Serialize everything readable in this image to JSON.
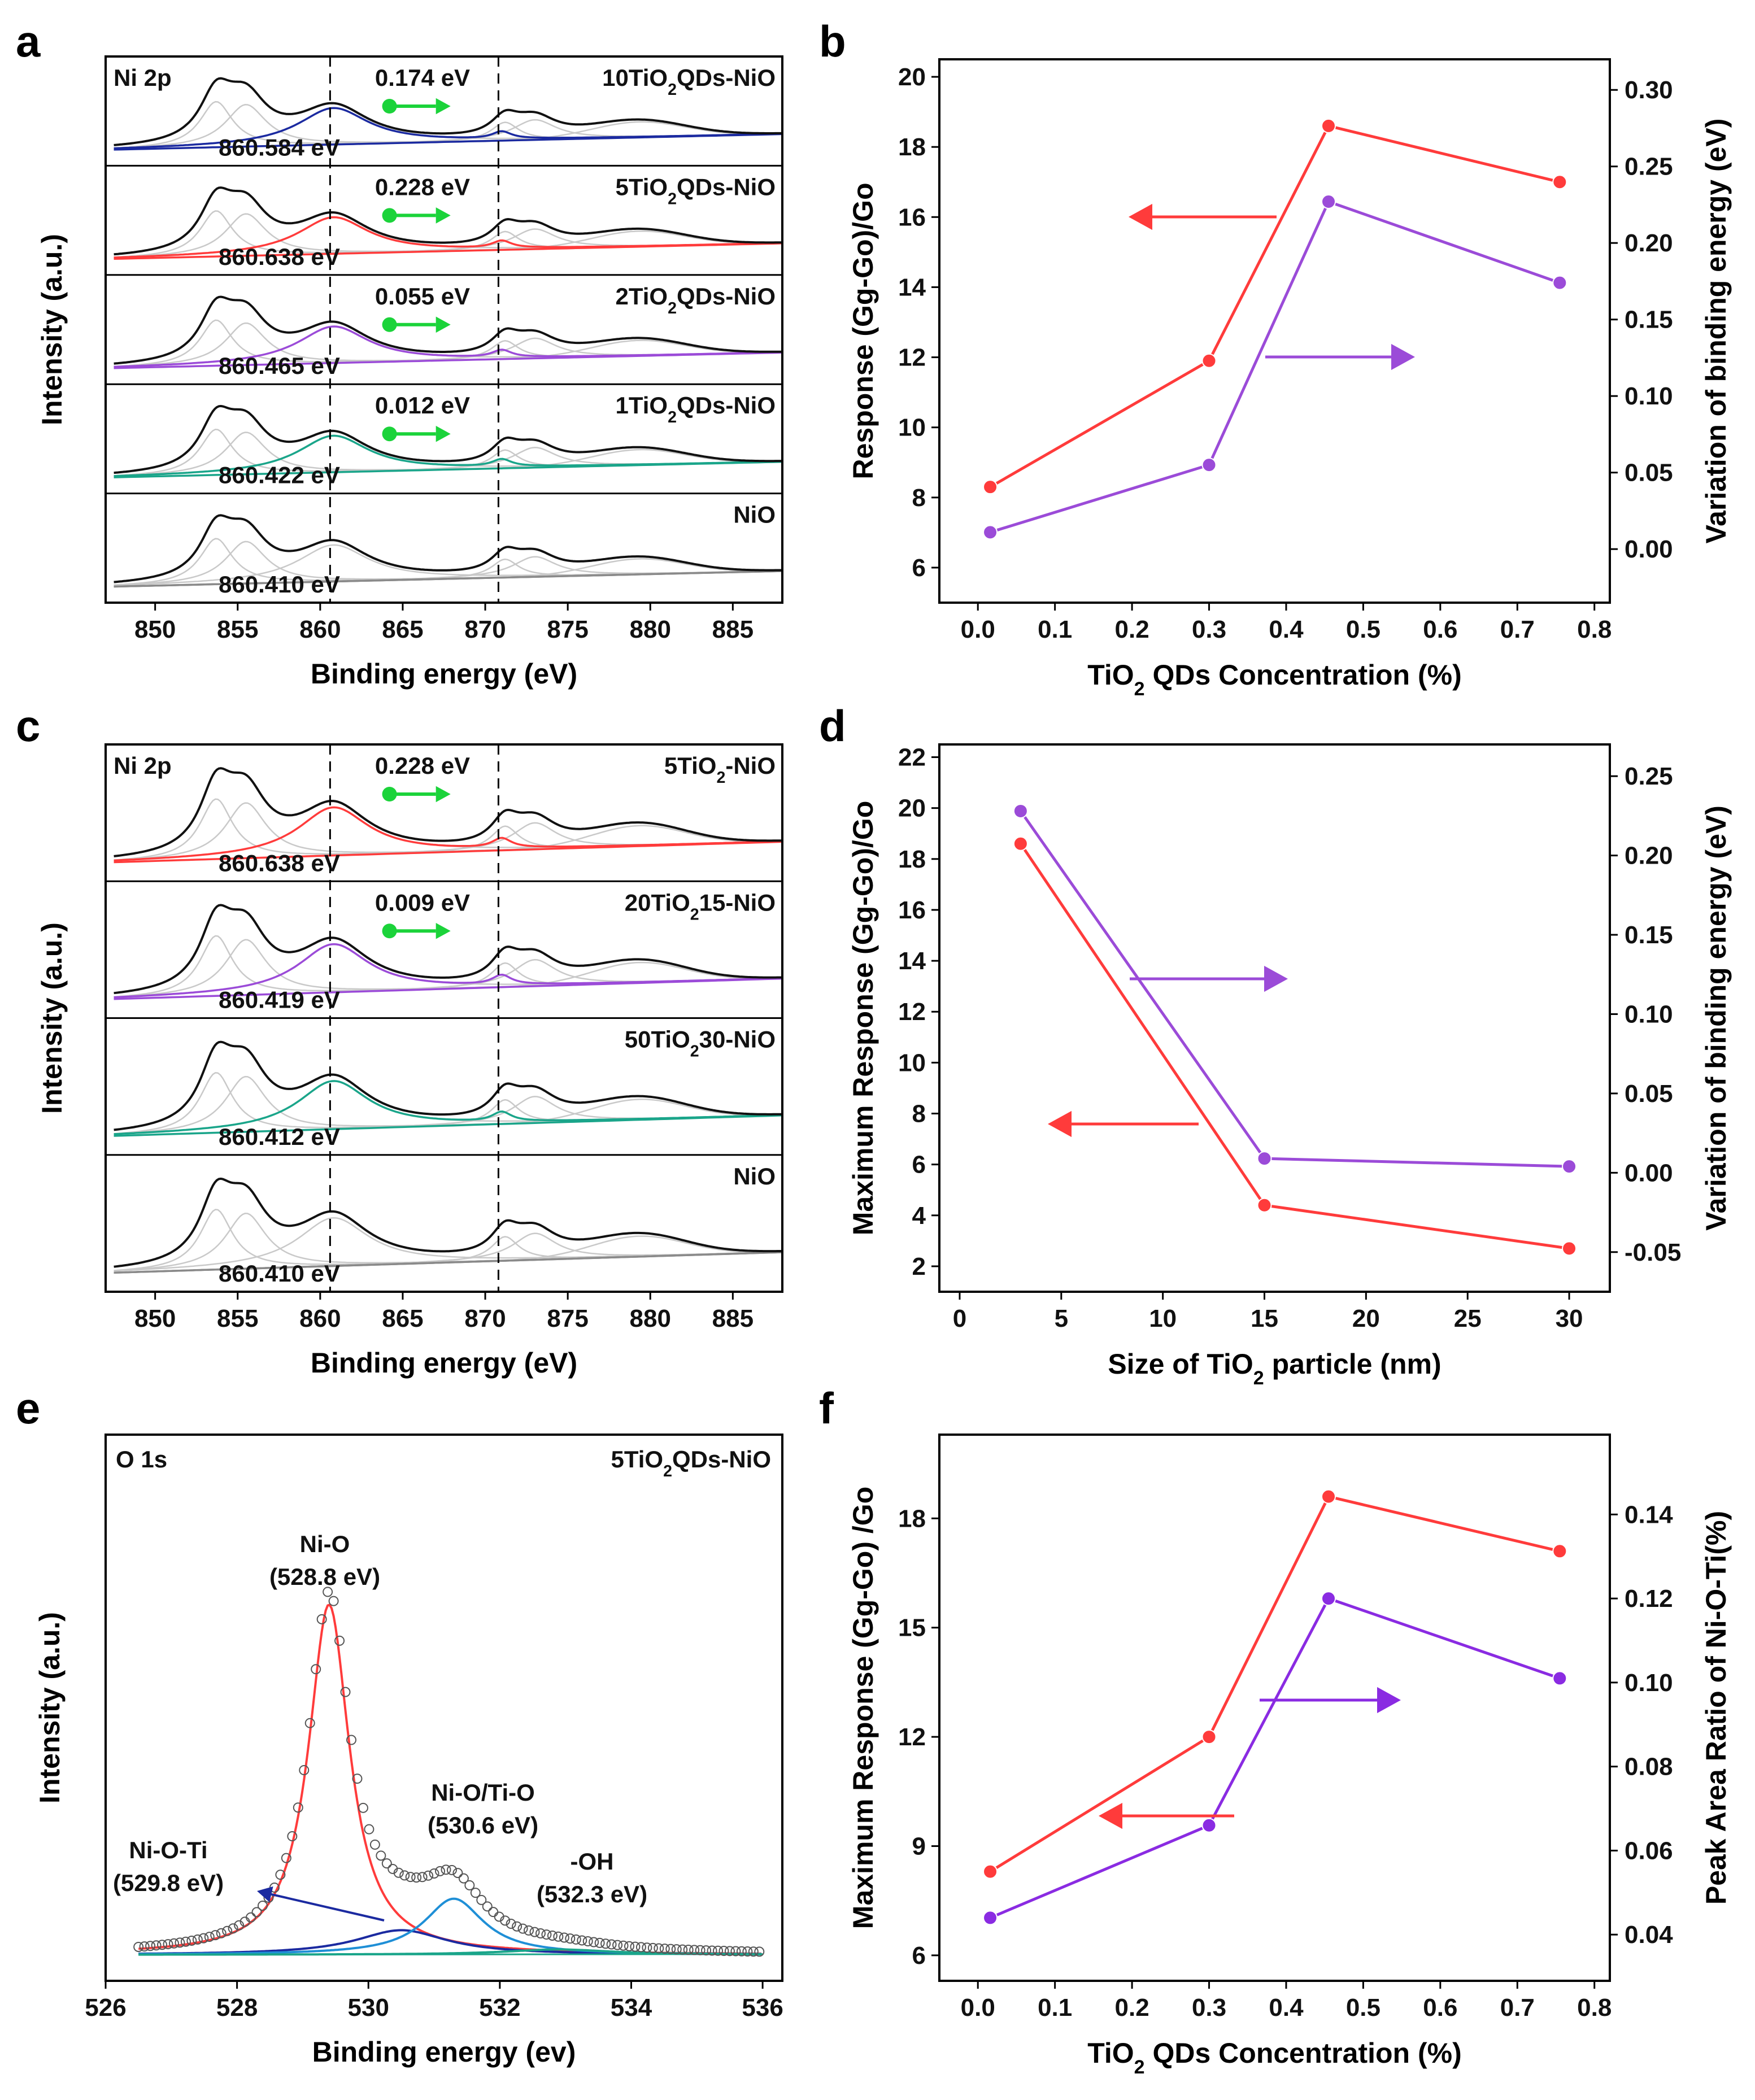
{
  "figure_labels": [
    "a",
    "b",
    "c",
    "d",
    "e",
    "f"
  ],
  "colors": {
    "red": "#ff3b3b",
    "purple": "#9b4bd8",
    "purple_f": "#8a2be2",
    "green": "#1bd33a",
    "navy": "#1b2aa0",
    "teal": "#1aa58a",
    "blue": "#1f8fd6"
  },
  "chart_data": [
    {
      "id": "a",
      "type": "line",
      "title": "",
      "xlabel": "Binding energy (eV)",
      "ylabel": "Intensity (a.u.)",
      "xlim": [
        847,
        888
      ],
      "xticks": [
        "850",
        "855",
        "860",
        "865",
        "870",
        "875",
        "880",
        "885"
      ],
      "element_label": "Ni 2p",
      "reference_lines": [
        860.6,
        870.8
      ],
      "panels": [
        {
          "sample": "10TiO₂QDs-NiO",
          "shift": "0.174 eV",
          "peak": "860.584 eV",
          "color": "#1b2aa0"
        },
        {
          "sample": "5TiO₂QDs-NiO",
          "shift": "0.228 eV",
          "peak": "860.638 eV",
          "color": "#ff3b3b"
        },
        {
          "sample": "2TiO₂QDs-NiO",
          "shift": "0.055 eV",
          "peak": "860.465 eV",
          "color": "#9b4bd8"
        },
        {
          "sample": "1TiO₂QDs-NiO",
          "shift": "0.012 eV",
          "peak": "860.422 eV",
          "color": "#1aa58a"
        },
        {
          "sample": "NiO",
          "shift": "",
          "peak": "860.410 eV",
          "color": "#8a8a8a"
        }
      ]
    },
    {
      "id": "b",
      "type": "line",
      "title": "",
      "xlabel": "TiO₂ QDs Concentration (%)",
      "ylabel": "Response (Gg-Go)/Go",
      "y2label": "Variation of binding energy (eV)",
      "xlim": [
        -0.05,
        0.82
      ],
      "ylim": [
        5,
        20.5
      ],
      "y2lim": [
        -0.035,
        0.32
      ],
      "xticks": [
        "0.0",
        "0.1",
        "0.2",
        "0.3",
        "0.4",
        "0.5",
        "0.6",
        "0.7",
        "0.8"
      ],
      "yticks": [
        "6",
        "8",
        "10",
        "12",
        "14",
        "16",
        "18",
        "20"
      ],
      "y2ticks": [
        "0.00",
        "0.05",
        "0.10",
        "0.15",
        "0.20",
        "0.25",
        "0.30"
      ],
      "series": [
        {
          "name": "Response",
          "axis": "left",
          "color": "#ff3b3b",
          "x": [
            0.016,
            0.3,
            0.455,
            0.755
          ],
          "values": [
            8.3,
            11.9,
            18.6,
            17.0
          ]
        },
        {
          "name": "Variation of binding energy",
          "axis": "right",
          "color": "#9b4bd8",
          "x": [
            0.016,
            0.3,
            0.455,
            0.755
          ],
          "values": [
            0.011,
            0.055,
            0.227,
            0.174
          ]
        }
      ]
    },
    {
      "id": "c",
      "type": "line",
      "title": "",
      "xlabel": "Binding energy (eV)",
      "ylabel": "Intensity (a.u.)",
      "xlim": [
        847,
        888
      ],
      "xticks": [
        "850",
        "855",
        "860",
        "865",
        "870",
        "875",
        "880",
        "885"
      ],
      "element_label": "Ni 2p",
      "reference_lines": [
        860.6,
        870.8
      ],
      "panels": [
        {
          "sample": "5TiO₂-NiO",
          "shift": "0.228 eV",
          "peak": "860.638 eV",
          "color": "#ff3b3b"
        },
        {
          "sample": "20TiO₂15-NiO",
          "shift": "0.009 eV",
          "peak": "860.419 eV",
          "color": "#9b4bd8"
        },
        {
          "sample": "50TiO₂30-NiO",
          "shift": "",
          "peak": "860.412 eV",
          "color": "#1aa58a"
        },
        {
          "sample": "NiO",
          "shift": "",
          "peak": "860.410 eV",
          "color": "#8a8a8a"
        }
      ]
    },
    {
      "id": "d",
      "type": "line",
      "title": "",
      "xlabel": "Size of TiO₂ particle (nm)",
      "ylabel": "Maximum Response (Gg-Go)/Go",
      "y2label": "Variation of binding energy (eV)",
      "xlim": [
        -1,
        32
      ],
      "ylim": [
        1,
        22.5
      ],
      "y2lim": [
        -0.075,
        0.27
      ],
      "xticks": [
        "0",
        "5",
        "10",
        "15",
        "20",
        "25",
        "30"
      ],
      "yticks": [
        "2",
        "4",
        "6",
        "8",
        "10",
        "12",
        "14",
        "16",
        "18",
        "20",
        "22"
      ],
      "y2ticks": [
        "-0.05",
        "0.00",
        "0.05",
        "0.10",
        "0.15",
        "0.20",
        "0.25"
      ],
      "series": [
        {
          "name": "Maximum Response",
          "axis": "left",
          "color": "#ff3b3b",
          "x": [
            3,
            15,
            30
          ],
          "values": [
            18.6,
            4.4,
            2.7
          ]
        },
        {
          "name": "Variation of binding energy",
          "axis": "right",
          "color": "#9b4bd8",
          "x": [
            3,
            15,
            30
          ],
          "values": [
            0.228,
            0.009,
            0.004
          ]
        }
      ]
    },
    {
      "id": "e",
      "type": "line",
      "title": "",
      "xlabel": "Binding energy (ev)",
      "ylabel": "Intensity (a.u.)",
      "xlim": [
        526,
        536.3
      ],
      "xticks": [
        "526",
        "528",
        "530",
        "532",
        "534",
        "536"
      ],
      "element_label": "O 1s",
      "sample": "5TiO₂QDs-NiO",
      "peaks": [
        {
          "name": "Ni-O",
          "position": "(528.8 eV)",
          "center": 529.4,
          "color": "#ff3b3b"
        },
        {
          "name": "Ni-O-Ti",
          "position": "(529.8 eV)",
          "center": 530.5,
          "color": "#1b2aa0"
        },
        {
          "name": "Ni-O/Ti-O",
          "position": "(530.6 eV)",
          "center": 531.3,
          "color": "#1f8fd6"
        },
        {
          "name": "-OH",
          "position": "(532.3 eV)",
          "center": 532.9,
          "color": "#1aa58a"
        }
      ]
    },
    {
      "id": "f",
      "type": "line",
      "title": "",
      "xlabel": "TiO₂ QDs Concentration (%)",
      "ylabel": "Maximum Response   (Gg-Go)  /Go",
      "y2label": "Peak Area Ratio of Ni-O-Ti(%)",
      "xlim": [
        -0.05,
        0.82
      ],
      "ylim": [
        5.3,
        20.3
      ],
      "y2lim": [
        0.029,
        0.159
      ],
      "xticks": [
        "0.0",
        "0.1",
        "0.2",
        "0.3",
        "0.4",
        "0.5",
        "0.6",
        "0.7",
        "0.8"
      ],
      "yticks": [
        "6",
        "9",
        "12",
        "15",
        "18"
      ],
      "y2ticks": [
        "0.04",
        "0.06",
        "0.08",
        "0.10",
        "0.12",
        "0.14"
      ],
      "series": [
        {
          "name": "Maximum Response",
          "axis": "left",
          "color": "#ff3b3b",
          "x": [
            0.016,
            0.3,
            0.455,
            0.755
          ],
          "values": [
            8.3,
            12.0,
            18.6,
            17.1
          ]
        },
        {
          "name": "Peak Area Ratio of Ni-O-Ti",
          "axis": "right",
          "color": "#8a2be2",
          "x": [
            0.016,
            0.3,
            0.455,
            0.755
          ],
          "values": [
            0.044,
            0.066,
            0.12,
            0.101
          ]
        }
      ]
    }
  ]
}
